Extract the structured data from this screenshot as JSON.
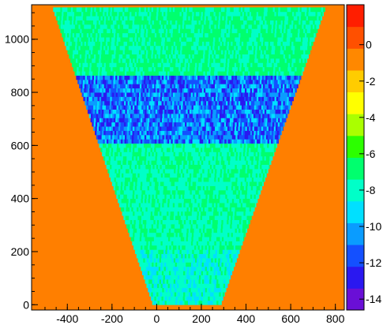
{
  "chart_data": {
    "type": "heatmap",
    "title": "",
    "xlabel": "",
    "ylabel": "",
    "xlim": [
      -560,
      840
    ],
    "ylim": [
      -20,
      1130
    ],
    "xticks": [
      -400,
      -200,
      0,
      200,
      400,
      600,
      800
    ],
    "yticks": [
      0,
      200,
      400,
      600,
      800,
      1000
    ],
    "colorbar": {
      "zlim": [
        -14.6,
        2.2
      ],
      "ticks": [
        0,
        -2,
        -4,
        -6,
        -8,
        -10,
        -12,
        -14
      ],
      "palette": [
        "#6a0fd6",
        "#2a18f0",
        "#1450ff",
        "#0a9cff",
        "#00e0ff",
        "#00ffc8",
        "#00ff6e",
        "#2cff00",
        "#aaff00",
        "#ffff00",
        "#ffcc00",
        "#ff8800",
        "#ff5000",
        "#ff1e00"
      ]
    },
    "background_value": 0,
    "region": {
      "description_rows": [
        {
          "y": [
            860,
            1120
          ],
          "level": "green-cyan",
          "value_range": [
            -8.2,
            -6.2
          ]
        },
        {
          "y": [
            600,
            860
          ],
          "level": "blue",
          "value_range": [
            -13.2,
            -9.0
          ]
        },
        {
          "y": [
            200,
            600
          ],
          "level": "cyan-green",
          "value_range": [
            -8.6,
            -6.6
          ]
        },
        {
          "y": [
            0,
            200
          ],
          "level": "cyan",
          "value_range": [
            -9.4,
            -7.0
          ]
        }
      ],
      "top_y": 1120,
      "bottom_y": 0,
      "top_x": [
        -470,
        760
      ],
      "bottom_x": [
        -20,
        290
      ]
    }
  }
}
